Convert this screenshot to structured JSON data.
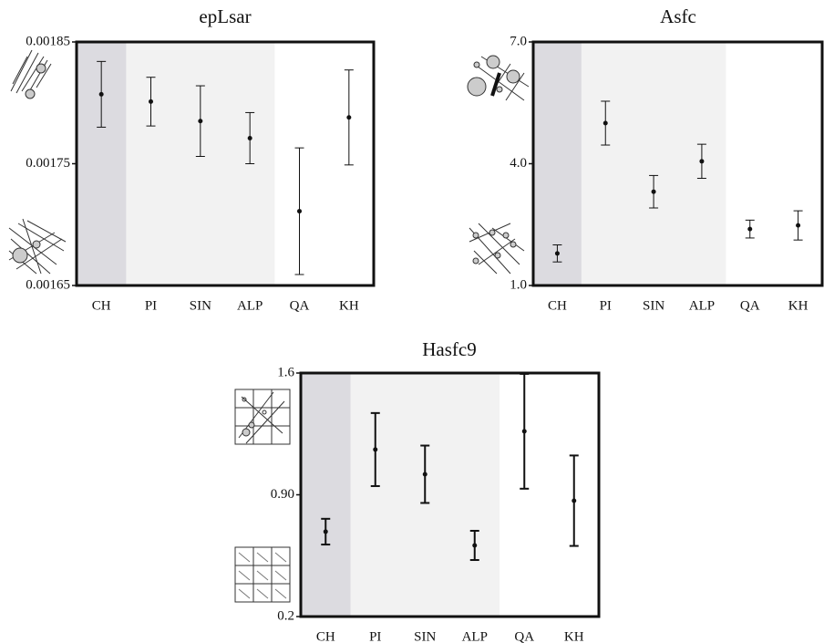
{
  "chart_data": [
    {
      "type": "errorbar",
      "title": "epLsar",
      "categories": [
        "CH",
        "PI",
        "SIN",
        "ALP",
        "QA",
        "KH"
      ],
      "values": [
        0.001807,
        0.001801,
        0.001785,
        0.001771,
        0.001711,
        0.001788
      ],
      "errors": [
        2.7e-05,
        2e-05,
        2.9e-05,
        2.1e-05,
        5.2e-05,
        3.9e-05
      ],
      "ylim": [
        0.00165,
        0.00185
      ],
      "yticks": [
        0.00165,
        0.00175,
        0.00185
      ],
      "background_colors": [
        "#dcdbe0",
        "#f2f2f2",
        "#f2f2f2",
        "#f2f2f2",
        "#ffffff",
        "#ffffff"
      ],
      "color": "#111111"
    },
    {
      "type": "errorbar",
      "title": "Asfc",
      "categories": [
        "CH",
        "PI",
        "SIN",
        "ALP",
        "QA",
        "KH"
      ],
      "values": [
        1.79,
        5.0,
        3.31,
        4.06,
        2.39,
        2.48
      ],
      "errors": [
        0.21,
        0.54,
        0.4,
        0.42,
        0.22,
        0.36
      ],
      "ylim": [
        1.0,
        7.0
      ],
      "yticks": [
        {
          "value": 1.0,
          "label": "1.0"
        },
        {
          "value": 4.0,
          "label": "4.0"
        },
        {
          "value": 7.0,
          "label": "7.0"
        }
      ],
      "background_colors": [
        "#dcdbe0",
        "#f2f2f2",
        "#f2f2f2",
        "#f2f2f2",
        "#ffffff",
        "#ffffff"
      ],
      "color": "#111111"
    },
    {
      "type": "errorbar",
      "title": "Hasfc9",
      "categories": [
        "CH",
        "PI",
        "SIN",
        "ALP",
        "QA",
        "KH"
      ],
      "values": [
        0.688,
        1.16,
        1.018,
        0.609,
        1.265,
        0.866
      ],
      "errors": [
        0.074,
        0.21,
        0.165,
        0.084,
        0.33,
        0.26
      ],
      "ylim": [
        0.2,
        1.6
      ],
      "yticks": [
        0.2,
        {
          "value": 0.9,
          "label": "0.90"
        },
        1.6
      ],
      "background_colors": [
        "#dcdbe0",
        "#f2f2f2",
        "#f2f2f2",
        "#f2f2f2",
        "#ffffff",
        "#ffffff"
      ],
      "color": "#111111"
    }
  ]
}
